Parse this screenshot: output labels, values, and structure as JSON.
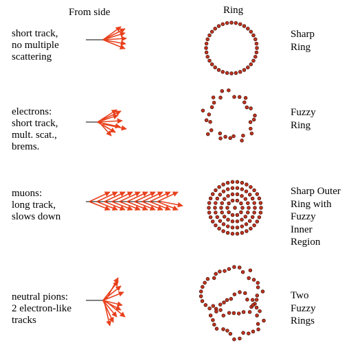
{
  "headers": {
    "side": "From side",
    "ring": "Ring"
  },
  "colors": {
    "arrow": "#e8401c",
    "dot_fill": "#c0331e",
    "dot_stroke": "#3a0d08"
  },
  "rows": [
    {
      "id": "sharp",
      "label": [
        "short track,",
        "no multiple",
        "scattering"
      ],
      "desc": [
        "Sharp",
        "Ring"
      ]
    },
    {
      "id": "electrons",
      "label": [
        "electrons:",
        "short track,",
        "mult. scat.,",
        "brems."
      ],
      "desc": [
        "Fuzzy",
        "Ring"
      ]
    },
    {
      "id": "muons",
      "label": [
        "muons:",
        "long track,",
        "slows down"
      ],
      "desc": [
        "Sharp Outer",
        "Ring with",
        "Fuzzy",
        "Inner",
        "Region"
      ]
    },
    {
      "id": "pions",
      "label": [
        "neutral pions:",
        "2 electron-like",
        "tracks"
      ],
      "desc": [
        "Two",
        "Fuzzy",
        "Rings"
      ]
    }
  ]
}
